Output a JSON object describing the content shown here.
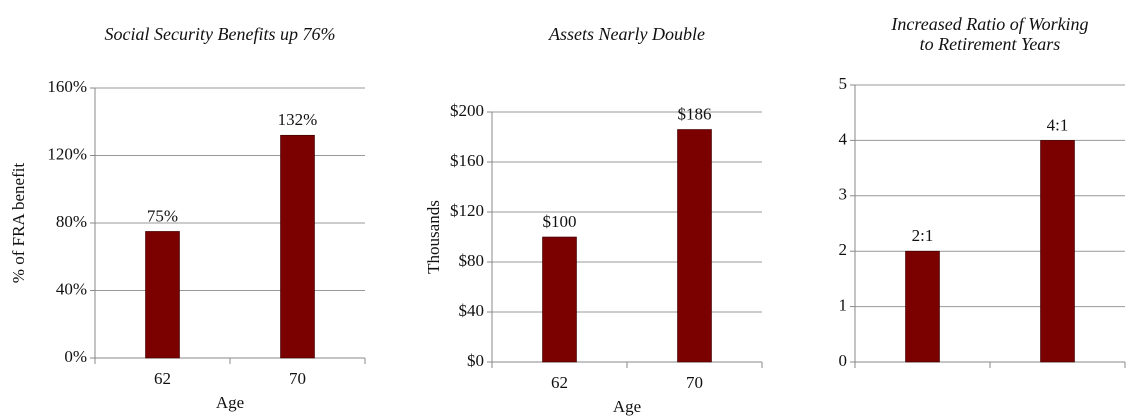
{
  "chart_data": [
    {
      "type": "bar",
      "title": "Social Security Benefits up 76%",
      "y_label": "% of FRA benefit",
      "x_label": "Age",
      "categories": [
        "62",
        "70"
      ],
      "values": [
        75,
        132
      ],
      "value_labels": [
        "75%",
        "132%"
      ],
      "color": "#7b0000",
      "ylim": [
        0,
        160
      ],
      "yticks": [
        {
          "value": 0,
          "label": "0%"
        },
        {
          "value": 40,
          "label": "40%"
        },
        {
          "value": 80,
          "label": "80%"
        },
        {
          "value": 120,
          "label": "120%"
        },
        {
          "value": 160,
          "label": "160%"
        }
      ],
      "grid": true
    },
    {
      "type": "bar",
      "title": "Assets Nearly Double",
      "y_label": "Thousands",
      "x_label": "Age",
      "categories": [
        "62",
        "70"
      ],
      "values": [
        100,
        186
      ],
      "value_labels": [
        "$100",
        "$186"
      ],
      "color": "#7b0000",
      "ylim": [
        0,
        200
      ],
      "yticks": [
        {
          "value": 0,
          "label": "$0"
        },
        {
          "value": 40,
          "label": "$40"
        },
        {
          "value": 80,
          "label": "$80"
        },
        {
          "value": 120,
          "label": "$120"
        },
        {
          "value": 160,
          "label": "$160"
        },
        {
          "value": 200,
          "label": "$200"
        }
      ],
      "grid": true
    },
    {
      "type": "bar",
      "title": [
        "Increased Ratio of Working",
        "to Retirement Years"
      ],
      "categories": [
        null,
        null
      ],
      "values": [
        2,
        4
      ],
      "value_labels": [
        "2:1",
        "4:1"
      ],
      "color": "#7b0000",
      "ylim": [
        0,
        5
      ],
      "yticks": [
        0,
        1,
        2,
        3,
        4,
        5
      ],
      "grid": true
    }
  ]
}
